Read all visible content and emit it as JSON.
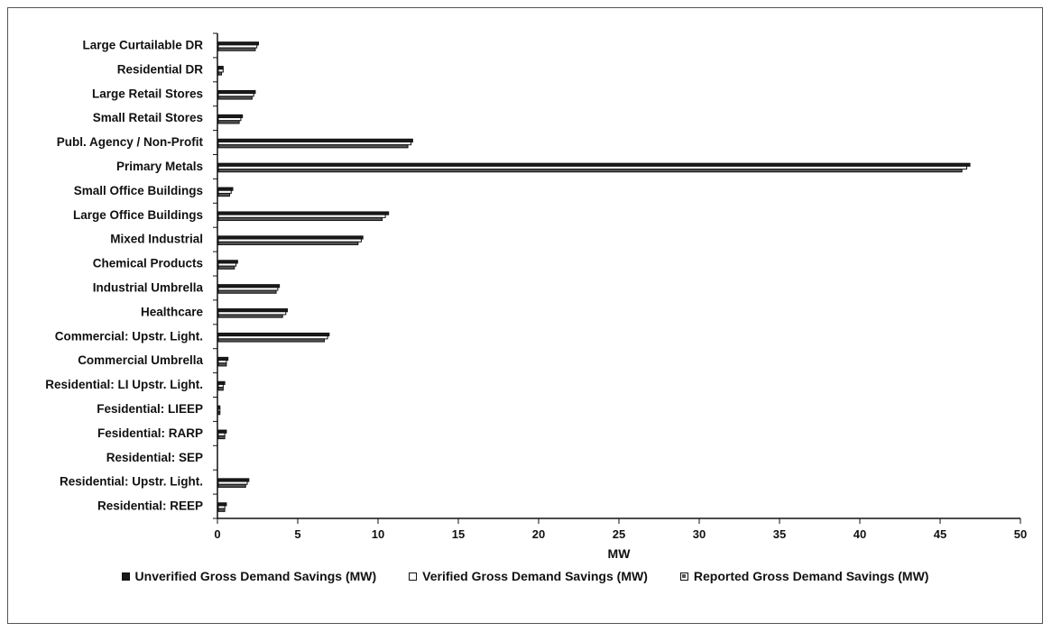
{
  "chart_data": {
    "type": "bar",
    "orientation": "horizontal",
    "categories": [
      "Large Curtailable DR",
      "Residential DR",
      "Large Retail Stores",
      "Small Retail Stores",
      "Publ. Agency / Non-Profit",
      "Primary Metals",
      "Small Office Buildings",
      "Large Office Buildings",
      "Mixed Industrial",
      "Chemical Products",
      "Industrial Umbrella",
      "Healthcare",
      "Commercial: Upstr. Light.",
      "Commercial Umbrella",
      "Residential: LI Upstr. Light.",
      "Fesidential: LIEEP",
      "Fesidential: RARP",
      "Residential: SEP",
      "Residential: Upstr. Light.",
      "Residential: REEP"
    ],
    "series": [
      {
        "name": "Unverified Gross Demand Savings (MW)",
        "values": [
          2.5,
          0.3,
          2.3,
          1.5,
          12.1,
          46.8,
          0.9,
          10.6,
          9.0,
          1.2,
          3.8,
          4.3,
          6.9,
          0.6,
          0.4,
          0.1,
          0.5,
          0.0,
          1.9,
          0.5
        ]
      },
      {
        "name": "Verified Gross Demand Savings (MW)",
        "values": [
          2.4,
          0.3,
          2.2,
          1.4,
          12.0,
          46.6,
          0.8,
          10.4,
          8.9,
          1.1,
          3.7,
          4.2,
          6.8,
          0.5,
          0.3,
          0.1,
          0.4,
          0.0,
          1.8,
          0.4
        ]
      },
      {
        "name": "Reported Gross Demand Savings (MW)",
        "values": [
          2.3,
          0.2,
          2.1,
          1.3,
          11.8,
          46.3,
          0.7,
          10.2,
          8.7,
          1.0,
          3.6,
          4.0,
          6.6,
          0.5,
          0.3,
          0.1,
          0.4,
          0.0,
          1.7,
          0.4
        ]
      }
    ],
    "xlabel": "MW",
    "ylabel": "",
    "xlim": [
      0,
      50
    ],
    "xticks": [
      "0",
      "5",
      "10",
      "15",
      "20",
      "25",
      "30",
      "35",
      "40",
      "45",
      "50"
    ],
    "grid": false,
    "legend_position": "bottom"
  },
  "colors": {
    "unverified": "#1a1a1a",
    "verified": "#ffffff",
    "reported": "#555555",
    "stroke": "#111111"
  }
}
